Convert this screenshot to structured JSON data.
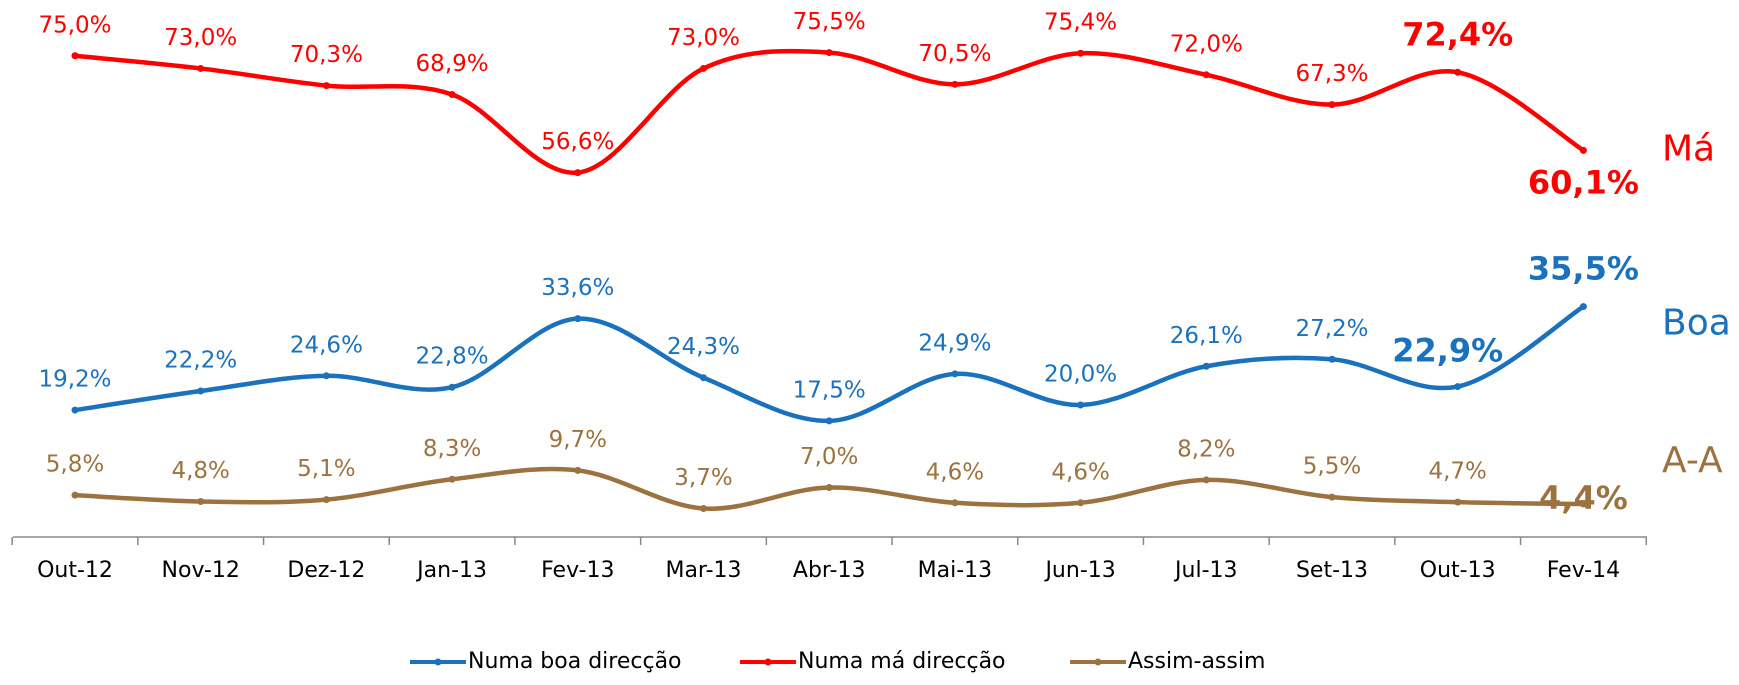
{
  "chart_data": {
    "type": "line",
    "categories": [
      "Out-12",
      "Nov-12",
      "Dez-12",
      "Jan-13",
      "Fev-13",
      "Mar-13",
      "Abr-13",
      "Mai-13",
      "Jun-13",
      "Jul-13",
      "Set-13",
      "Out-13",
      "Fev-14"
    ],
    "series": [
      {
        "name": "Numa boa direcção",
        "color": "#1a72bf",
        "side_label": "Boa",
        "values": [
          19.2,
          22.2,
          24.6,
          22.8,
          33.6,
          24.3,
          17.5,
          24.9,
          20.0,
          26.1,
          27.2,
          22.9,
          35.5
        ],
        "value_labels": [
          "19,2%",
          "22,2%",
          "24,6%",
          "22,8%",
          "33,6%",
          "24,3%",
          "17,5%",
          "24,9%",
          "20,0%",
          "26,1%",
          "27,2%",
          "22,9%",
          "35,5%"
        ]
      },
      {
        "name": "Numa má direcção",
        "color": "#ff0000",
        "side_label": "Má",
        "values": [
          75.0,
          73.0,
          70.3,
          68.9,
          56.6,
          73.0,
          75.5,
          70.5,
          75.4,
          72.0,
          67.3,
          72.4,
          60.1
        ],
        "value_labels": [
          "75,0%",
          "73,0%",
          "70,3%",
          "68,9%",
          "56,6%",
          "73,0%",
          "75,5%",
          "70,5%",
          "75,4%",
          "72,0%",
          "67,3%",
          "72,4%",
          "60,1%"
        ]
      },
      {
        "name": "Assim-assim",
        "color": "#9c7340",
        "side_label": "A-A",
        "values": [
          5.8,
          4.8,
          5.1,
          8.3,
          9.7,
          3.7,
          7.0,
          4.6,
          4.6,
          8.2,
          5.5,
          4.7,
          4.4
        ],
        "value_labels": [
          "5,8%",
          "4,8%",
          "5,1%",
          "8,3%",
          "9,7%",
          "3,7%",
          "7,0%",
          "4,6%",
          "4,6%",
          "8,2%",
          "5,5%",
          "4,7%",
          "4,4%"
        ]
      }
    ]
  }
}
